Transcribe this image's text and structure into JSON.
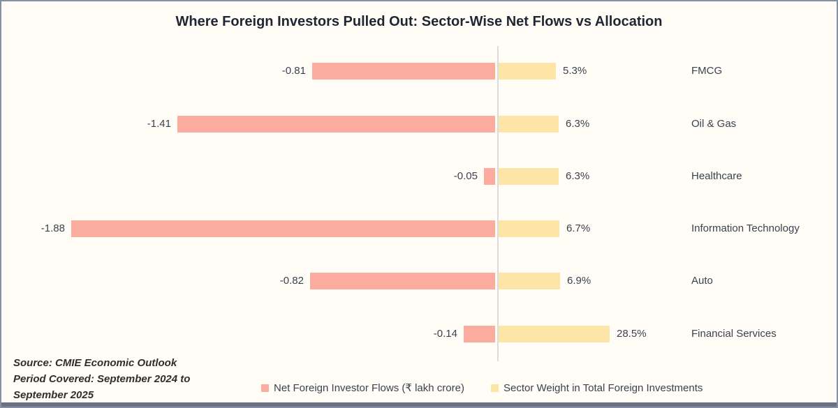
{
  "title": "Where Foreign Investors Pulled Out: Sector-Wise Net Flows vs Allocation",
  "source": {
    "line1": "Source: CMIE Economic Outlook",
    "line2": "Period Covered: September 2024 to",
    "line3": "September 2025"
  },
  "legend": [
    {
      "label": "Net Foreign Investor Flows (₹ lakh crore)",
      "color": "#FCAC9E"
    },
    {
      "label": "Sector Weight in Total Foreign Investments",
      "color": "#FDE5A7"
    }
  ],
  "colors": {
    "background": "#FFFDF6",
    "frame_border": "#8690A4",
    "bottom_strip": "#6A7183",
    "axis_line": "#DBDBDB",
    "flow_bar": "#FCAC9E",
    "weight_bar": "#FDE5A7",
    "title_text": "#1F2533",
    "label_text": "#3A4151"
  },
  "chart_data": {
    "type": "bar",
    "orientation": "horizontal",
    "title": "Where Foreign Investors Pulled Out: Sector-Wise Net Flows vs Allocation",
    "categories": [
      "FMCG",
      "Oil & Gas",
      "Healthcare",
      "Information Technology",
      "Auto",
      "Financial Services"
    ],
    "series": [
      {
        "name": "Net Foreign Investor Flows (₹ lakh crore)",
        "color": "#FCAC9E",
        "values": [
          -0.81,
          -1.41,
          -0.05,
          -1.88,
          -0.82,
          -0.14
        ],
        "labels": [
          "-0.81",
          "-1.41",
          "-0.05",
          "-1.88",
          "-0.82",
          "-0.14"
        ]
      },
      {
        "name": "Sector Weight in Total Foreign Investments",
        "color": "#FDE5A7",
        "values": [
          5.3,
          6.3,
          6.3,
          6.7,
          6.9,
          28.5
        ],
        "labels": [
          "5.3%",
          "6.3%",
          "6.3%",
          "6.7%",
          "6.9%",
          "28.5%"
        ]
      }
    ],
    "zero_line": true,
    "grid": false,
    "legend_position": "bottom",
    "category_labels_position": "right"
  }
}
